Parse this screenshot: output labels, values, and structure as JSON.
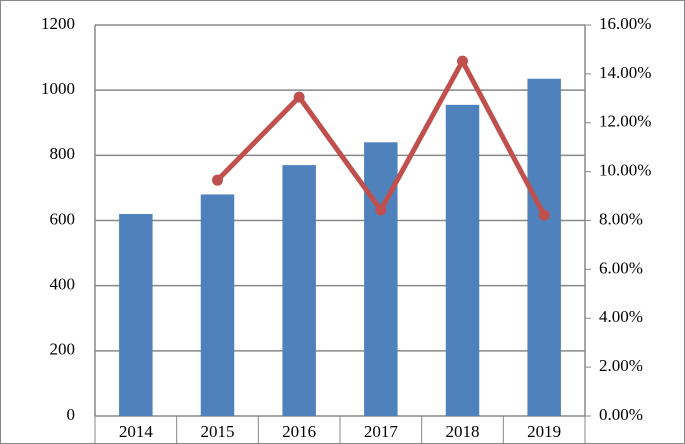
{
  "chart_data": {
    "type": "bar",
    "categories": [
      "2014",
      "2015",
      "2016",
      "2017",
      "2018",
      "2019"
    ],
    "series": [
      {
        "type": "bar",
        "color": "#4f81bd",
        "values": [
          620,
          680,
          770,
          840,
          955,
          1035
        ]
      },
      {
        "type": "line",
        "axis": "y2",
        "color": "#c0504d",
        "values": [
          null,
          9.65,
          13.05,
          8.43,
          14.52,
          8.22
        ]
      }
    ],
    "ylim": [
      0,
      1200
    ],
    "yticks": [
      0,
      200,
      400,
      600,
      800,
      1000,
      1200
    ],
    "y2lim": [
      0,
      16
    ],
    "y2ticks": [
      {
        "value": 0,
        "label": "0.00%"
      },
      {
        "value": 2,
        "label": "2.00%"
      },
      {
        "value": 4,
        "label": "4.00%"
      },
      {
        "value": 6,
        "label": "6.00%"
      },
      {
        "value": 8,
        "label": "8.00%"
      },
      {
        "value": 10,
        "label": "10.00%"
      },
      {
        "value": 12,
        "label": "12.00%"
      },
      {
        "value": 14,
        "label": "14.00%"
      },
      {
        "value": 16,
        "label": "16.00%"
      }
    ],
    "grid": true
  }
}
